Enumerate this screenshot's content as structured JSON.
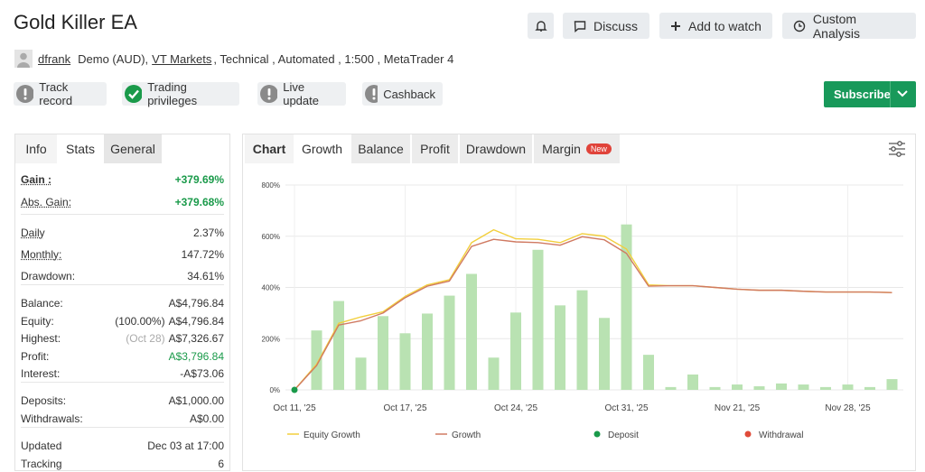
{
  "header": {
    "title": "Gold Killer EA",
    "buttons": [
      "Discuss",
      "Add to watch",
      "Custom Analysis"
    ]
  },
  "profile": {
    "user": "dfrank",
    "account": "Demo (AUD),",
    "broker": "VT Markets",
    "details": ", Technical , Automated , 1:500 , MetaTrader 4"
  },
  "badges": [
    "Track record",
    "Trading privileges",
    "Live update",
    "Cashback"
  ],
  "subscribe": "Subscribe",
  "stats": {
    "tabs": [
      "Info",
      "Stats",
      "General"
    ],
    "groups": [
      [
        {
          "label": "Gain :",
          "value": "+379.69%"
        },
        {
          "label": "Abs. Gain:",
          "value": "+379.68%"
        }
      ],
      [
        {
          "label": "Daily",
          "value": "2.37%"
        },
        {
          "label": "Monthly:",
          "value": "147.72%"
        },
        {
          "label": "Drawdown:",
          "value": "34.61%"
        }
      ],
      [
        {
          "label": "Balance:",
          "value": "A$4,796.84"
        },
        {
          "label": "Equity:",
          "note": "(100.00%)",
          "value": "A$4,796.84"
        },
        {
          "label": "Highest:",
          "note": "(Oct 28)",
          "value": "A$7,326.67"
        },
        {
          "label": "Profit:",
          "value": "A$3,796.84"
        },
        {
          "label": "Interest:",
          "value": "-A$73.06"
        }
      ],
      [
        {
          "label": "Deposits:",
          "value": "A$1,000.00"
        },
        {
          "label": "Withdrawals:",
          "value": "A$0.00"
        }
      ],
      [
        {
          "label": "Updated",
          "value": "Dec 03 at 17:00"
        },
        {
          "label": "Tracking",
          "value": "6"
        }
      ]
    ]
  },
  "chart_tabs": {
    "tabs": [
      "Chart",
      "Growth",
      "Balance",
      "Profit",
      "Drawdown",
      "Margin"
    ],
    "new_badge": "New"
  },
  "chart_data": {
    "type": "bar",
    "categories": [
      "Oct 11, '25",
      null,
      null,
      null,
      null,
      "Oct 17, '25",
      null,
      null,
      null,
      null,
      "Oct 24, '25",
      null,
      null,
      null,
      null,
      "Oct 31, '25",
      null,
      null,
      null,
      null,
      "Nov 21, '25",
      null,
      null,
      null,
      null,
      "Nov 28, '25",
      null,
      null
    ],
    "values": [
      null,
      232,
      347,
      126,
      288,
      221,
      298,
      368,
      453,
      126,
      302,
      547,
      330,
      389,
      281,
      646,
      137,
      11,
      60,
      11,
      21,
      14,
      25,
      21,
      11,
      21,
      11,
      42
    ],
    "color": "#b9e2b2",
    "series": [
      {
        "name": "Equity Growth",
        "type": "line",
        "color": "#f2cf3c",
        "values": [
          0,
          100,
          260,
          285,
          305,
          365,
          410,
          430,
          575,
          625,
          590,
          588,
          575,
          610,
          600,
          550,
          410,
          407,
          407,
          400,
          393,
          389,
          389,
          385,
          382,
          382,
          382,
          380
        ]
      },
      {
        "name": "Growth",
        "type": "line",
        "color": "#d07a62",
        "values": [
          0,
          95,
          253,
          270,
          300,
          360,
          405,
          425,
          560,
          588,
          578,
          575,
          565,
          598,
          586,
          533,
          405,
          407,
          407,
          400,
          393,
          389,
          389,
          385,
          382,
          382,
          382,
          380
        ]
      },
      {
        "name": "Deposit",
        "type": "scatter",
        "color": "#1a9a4a",
        "values": [
          0,
          null,
          null,
          null,
          null,
          null,
          null,
          null,
          null,
          null,
          null,
          null,
          null,
          null,
          null,
          null,
          null,
          null,
          null,
          null,
          null,
          null,
          null,
          null,
          null,
          null,
          null,
          null
        ]
      },
      {
        "name": "Withdrawal",
        "type": "scatter",
        "color": "#e04b3a",
        "values": [
          null,
          null,
          null,
          null,
          null,
          null,
          null,
          null,
          null,
          null,
          null,
          null,
          null,
          null,
          null,
          null,
          null,
          null,
          null,
          null,
          null,
          null,
          null,
          null,
          null,
          null,
          null,
          null
        ]
      }
    ],
    "ylim": [
      0,
      800
    ],
    "yticks": [
      {
        "value": 0,
        "label": "0%"
      },
      {
        "value": 200,
        "label": "200%"
      },
      {
        "value": 400,
        "label": "400%"
      },
      {
        "value": 600,
        "label": "600%"
      },
      {
        "value": 800,
        "label": "800%"
      }
    ],
    "grid": true
  }
}
